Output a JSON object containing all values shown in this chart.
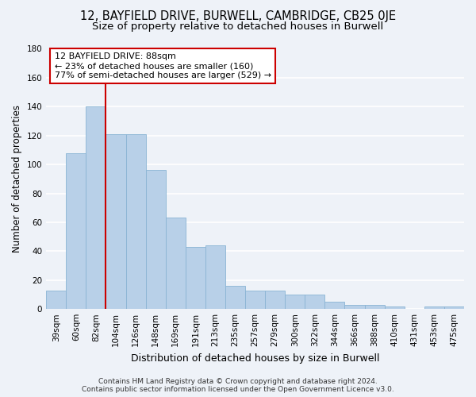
{
  "title": "12, BAYFIELD DRIVE, BURWELL, CAMBRIDGE, CB25 0JE",
  "subtitle": "Size of property relative to detached houses in Burwell",
  "xlabel": "Distribution of detached houses by size in Burwell",
  "ylabel": "Number of detached properties",
  "categories": [
    "39sqm",
    "60sqm",
    "82sqm",
    "104sqm",
    "126sqm",
    "148sqm",
    "169sqm",
    "191sqm",
    "213sqm",
    "235sqm",
    "257sqm",
    "279sqm",
    "300sqm",
    "322sqm",
    "344sqm",
    "366sqm",
    "388sqm",
    "410sqm",
    "431sqm",
    "453sqm",
    "475sqm"
  ],
  "values": [
    13,
    108,
    140,
    121,
    121,
    96,
    63,
    43,
    44,
    16,
    13,
    13,
    10,
    10,
    5,
    3,
    3,
    2,
    0,
    2,
    2
  ],
  "bar_color": "#b8d0e8",
  "bar_edge_color": "#8ab4d4",
  "vline_index": 2,
  "annotation_title": "12 BAYFIELD DRIVE: 88sqm",
  "annotation_line1": "← 23% of detached houses are smaller (160)",
  "annotation_line2": "77% of semi-detached houses are larger (529) →",
  "annotation_box_facecolor": "#ffffff",
  "annotation_box_edgecolor": "#cc0000",
  "vline_color": "#cc0000",
  "ylim": [
    0,
    180
  ],
  "yticks": [
    0,
    20,
    40,
    60,
    80,
    100,
    120,
    140,
    160,
    180
  ],
  "background_color": "#eef2f8",
  "grid_color": "#ffffff",
  "footer": "Contains HM Land Registry data © Crown copyright and database right 2024.\nContains public sector information licensed under the Open Government Licence v3.0.",
  "title_fontsize": 10.5,
  "subtitle_fontsize": 9.5,
  "xlabel_fontsize": 9,
  "ylabel_fontsize": 8.5,
  "tick_fontsize": 7.5,
  "annot_fontsize": 8,
  "footer_fontsize": 6.5
}
